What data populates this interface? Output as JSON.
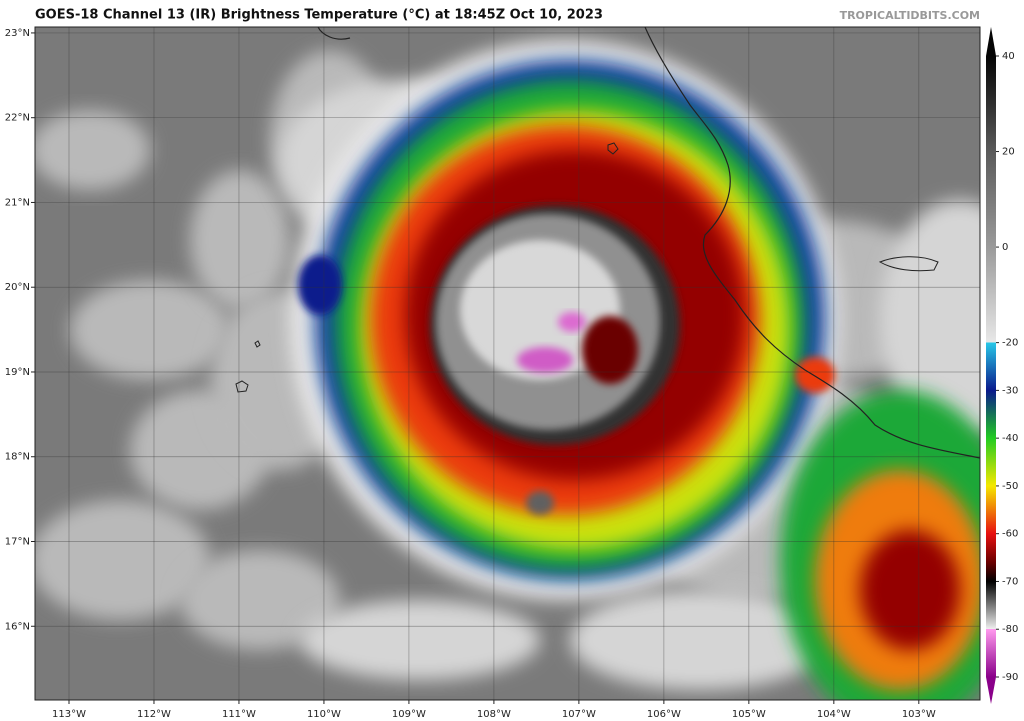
{
  "header": {
    "title": "GOES-18 Channel 13 (IR) Brightness Temperature (°C) at 18:45Z Oct 10, 2023",
    "credit": "TROPICALTIDBITS.COM"
  },
  "map": {
    "lon_range": [
      -113.4,
      -102.28
    ],
    "lat_range": [
      15.13,
      23.07
    ],
    "lon_ticks": [
      {
        "value": -113,
        "label": "113°W"
      },
      {
        "value": -112,
        "label": "112°W"
      },
      {
        "value": -111,
        "label": "111°W"
      },
      {
        "value": -110,
        "label": "110°W"
      },
      {
        "value": -109,
        "label": "109°W"
      },
      {
        "value": -108,
        "label": "108°W"
      },
      {
        "value": -107,
        "label": "107°W"
      },
      {
        "value": -106,
        "label": "106°W"
      },
      {
        "value": -105,
        "label": "105°W"
      },
      {
        "value": -104,
        "label": "104°W"
      },
      {
        "value": -103,
        "label": "103°W"
      }
    ],
    "lat_ticks": [
      {
        "value": 16,
        "label": "16°N"
      },
      {
        "value": 17,
        "label": "17°N"
      },
      {
        "value": 18,
        "label": "18°N"
      },
      {
        "value": 19,
        "label": "19°N"
      },
      {
        "value": 20,
        "label": "20°N"
      },
      {
        "value": 21,
        "label": "21°N"
      },
      {
        "value": 22,
        "label": "22°N"
      },
      {
        "value": 23,
        "label": "23°N"
      }
    ]
  },
  "colorbar": {
    "range": [
      -90,
      40
    ],
    "ticks": [
      40,
      20,
      0,
      -20,
      -30,
      -40,
      -50,
      -60,
      -70,
      -80,
      -90
    ],
    "stops": [
      {
        "value": 40,
        "color": "#050505"
      },
      {
        "value": 20,
        "color": "#5a5a5a"
      },
      {
        "value": 0,
        "color": "#9a9a9a"
      },
      {
        "value": -20,
        "color": "#e8e8e8"
      },
      {
        "value": -20,
        "color": "#29c8e8"
      },
      {
        "value": -30,
        "color": "#0a1a8c"
      },
      {
        "value": -40,
        "color": "#22cc22"
      },
      {
        "value": -50,
        "color": "#f5e800"
      },
      {
        "value": -60,
        "color": "#e81010"
      },
      {
        "value": -66,
        "color": "#6a0000"
      },
      {
        "value": -70,
        "color": "#000000"
      },
      {
        "value": -80,
        "color": "#f0f0f0"
      },
      {
        "value": -80,
        "color": "#ff99ee"
      },
      {
        "value": -90,
        "color": "#8a008a"
      }
    ]
  }
}
